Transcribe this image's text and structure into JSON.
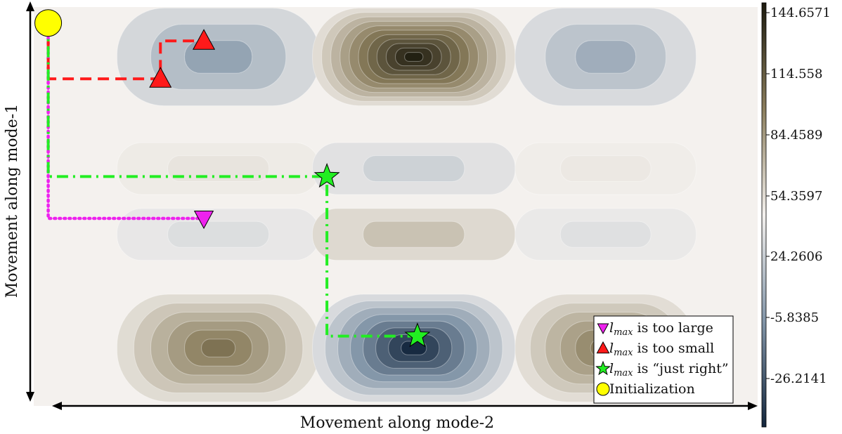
{
  "chart_data": {
    "type": "contour",
    "xlabel": "Movement along mode-2",
    "ylabel": "Movement along mode-1",
    "colorbar": {
      "ticks": [
        "144.6571",
        "114.558",
        "84.4589",
        "54.3597",
        "24.2606",
        "-5.8385",
        "-26.2141"
      ],
      "range": [
        -36.3,
        148.0
      ],
      "colors": {
        "high": "#1c1a0e",
        "mid": "#f4f1ee",
        "low": "#13263d"
      }
    },
    "field": {
      "comment_free": true,
      "blobs": [
        {
          "col": 0,
          "row": 0,
          "value": 8
        },
        {
          "col": 1,
          "row": 0,
          "value": 145
        },
        {
          "col": 2,
          "row": 0,
          "value": 12
        },
        {
          "col": 0,
          "row": 1,
          "value": 46
        },
        {
          "col": 1,
          "row": 1,
          "value": 27
        },
        {
          "col": 2,
          "row": 1,
          "value": 44
        },
        {
          "col": 0,
          "row": 2,
          "value": 32
        },
        {
          "col": 1,
          "row": 2,
          "value": 62
        },
        {
          "col": 2,
          "row": 2,
          "value": 33
        },
        {
          "col": 0,
          "row": 3,
          "value": 100
        },
        {
          "col": 1,
          "row": 3,
          "value": -35
        },
        {
          "col": 2,
          "row": 3,
          "value": 96
        }
      ],
      "background": 40
    },
    "paths": [
      {
        "name": "l_max is too large",
        "color": "#ee22ee",
        "style": "dotted",
        "points": [
          [
            0.02,
            0.04
          ],
          [
            0.02,
            0.53
          ],
          [
            0.235,
            0.53
          ]
        ]
      },
      {
        "name": "l_max is too small",
        "color": "#ff1a1a",
        "style": "dashed",
        "points": [
          [
            0.02,
            0.04
          ],
          [
            0.02,
            0.18
          ],
          [
            0.175,
            0.18
          ],
          [
            0.175,
            0.085
          ],
          [
            0.235,
            0.085
          ]
        ]
      },
      {
        "name": "l_max is \"just right\"",
        "color": "#22ee22",
        "style": "dashdot",
        "points": [
          [
            0.02,
            0.04
          ],
          [
            0.02,
            0.425
          ],
          [
            0.405,
            0.425
          ],
          [
            0.405,
            0.825
          ],
          [
            0.53,
            0.825
          ]
        ]
      }
    ],
    "markers": [
      {
        "series": "l_max is too small",
        "shape": "triangle-up",
        "color": "#ff1a1a",
        "x": 0.235,
        "y": 0.085
      },
      {
        "series": "l_max is too small",
        "shape": "triangle-up",
        "color": "#ff1a1a",
        "x": 0.175,
        "y": 0.18
      },
      {
        "series": "l_max is \"just right\"",
        "shape": "star",
        "color": "#22ee22",
        "x": 0.405,
        "y": 0.425
      },
      {
        "series": "l_max is \"just right\"",
        "shape": "star",
        "color": "#22ee22",
        "x": 0.53,
        "y": 0.825
      },
      {
        "series": "l_max is too large",
        "shape": "triangle-down",
        "color": "#ee22ee",
        "x": 0.235,
        "y": 0.53
      },
      {
        "series": "Initialization",
        "shape": "circle",
        "color": "#ffff00",
        "x": 0.02,
        "y": 0.04
      }
    ],
    "legend": {
      "placement": "bottom-right",
      "entries": [
        {
          "symbol": "triangle-down",
          "color": "#ee22ee",
          "var": "l",
          "sub": "max",
          "text": " is too large"
        },
        {
          "symbol": "triangle-up",
          "color": "#ff1a1a",
          "var": "l",
          "sub": "max",
          "text": " is too small"
        },
        {
          "symbol": "star",
          "color": "#22ee22",
          "var": "l",
          "sub": "max",
          "text": " is “just right”"
        },
        {
          "symbol": "circle",
          "color": "#ffff00",
          "var": "",
          "sub": "",
          "text": "Initialization"
        }
      ]
    }
  }
}
